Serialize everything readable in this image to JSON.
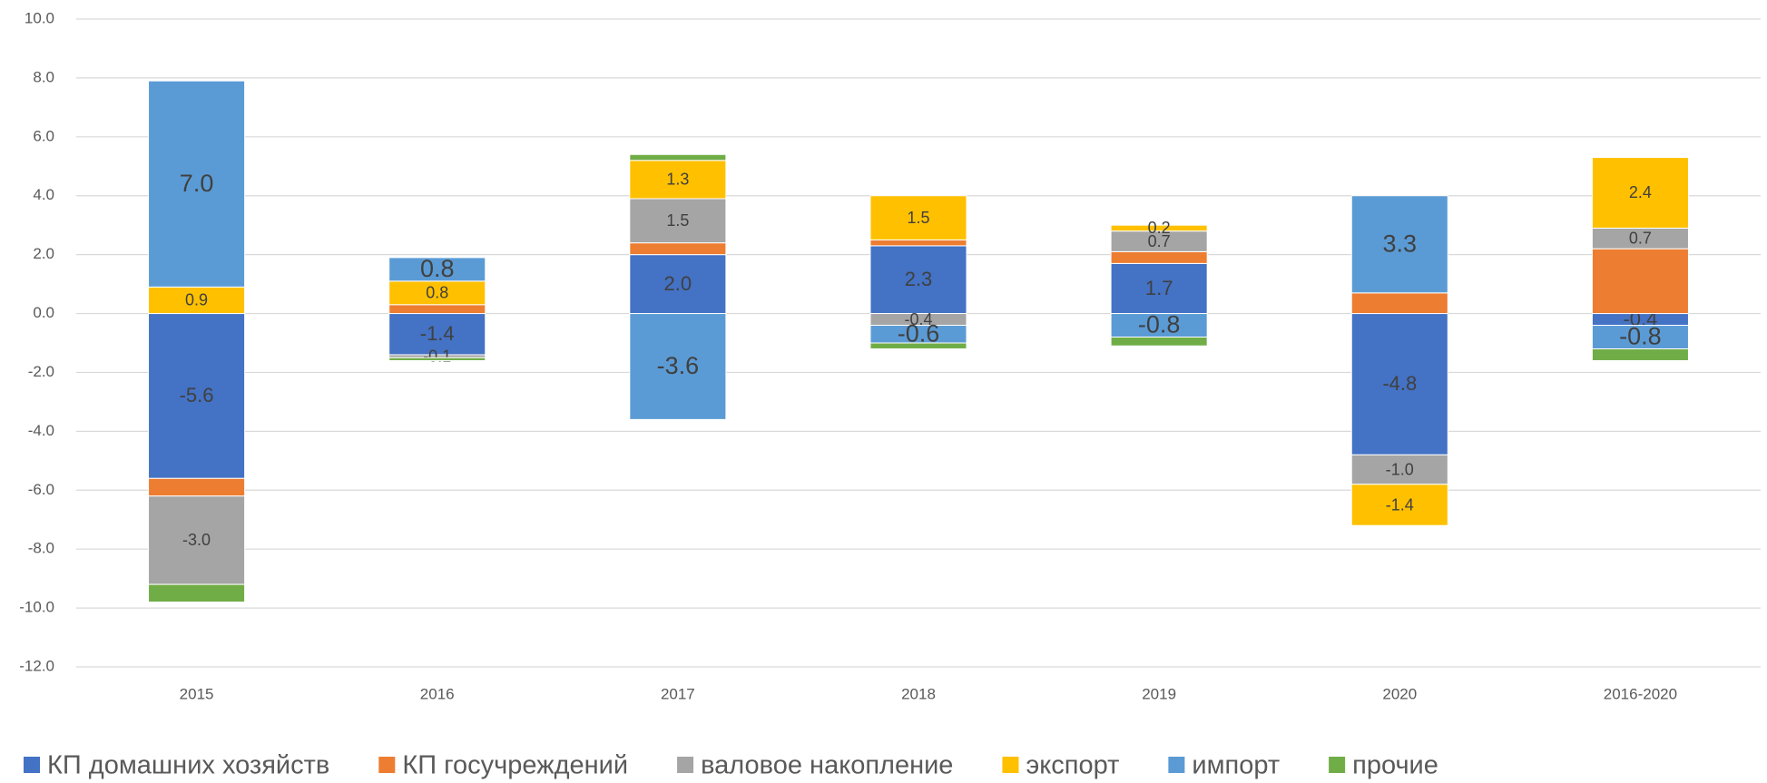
{
  "chart_data": {
    "type": "bar",
    "stacked": true,
    "categories": [
      "2015",
      "2016",
      "2017",
      "2018",
      "2019",
      "2020",
      "2016-2020"
    ],
    "series": [
      {
        "name": "КП домашних хозяйств",
        "color": "#4472c4",
        "values": [
          -5.6,
          -1.4,
          2.0,
          2.3,
          1.7,
          -4.8,
          -0.4
        ],
        "value_labels": [
          "-5.6",
          "-1.4",
          "2.0",
          "2.3",
          "1.7",
          "-4.8",
          "-0.4"
        ]
      },
      {
        "name": "КП госучреждений",
        "color": "#ed7d31",
        "values": [
          -0.6,
          0.3,
          0.4,
          0.2,
          0.4,
          0.7,
          2.2
        ],
        "value_labels": [
          null,
          null,
          null,
          null,
          null,
          null,
          null
        ]
      },
      {
        "name": "валовое накопление",
        "color": "#a5a5a5",
        "values": [
          -3.0,
          -0.1,
          1.5,
          -0.4,
          0.7,
          -1.0,
          0.7
        ],
        "value_labels": [
          "-3.0",
          "-0.1",
          "1.5",
          "-0.4",
          "0.7",
          "-1.0",
          "0.7"
        ]
      },
      {
        "name": "экспорт",
        "color": "#ffc000",
        "values": [
          0.9,
          0.8,
          1.3,
          1.5,
          0.2,
          -1.4,
          2.4
        ],
        "value_labels": [
          "0.9",
          "0.8",
          "1.3",
          "1.5",
          "0.2",
          "-1.4",
          "2.4"
        ]
      },
      {
        "name": "импорт",
        "color": "#5b9bd5",
        "values": [
          7.0,
          0.8,
          -3.6,
          -0.6,
          -0.8,
          3.3,
          -0.8
        ],
        "value_labels": [
          "7.0",
          "0.8",
          "-3.6",
          "-0.6",
          "-0.8",
          "3.3",
          "-0.8"
        ]
      },
      {
        "name": "прочие",
        "color": "#70ad47",
        "values": [
          -0.6,
          -0.1,
          0.2,
          -0.2,
          -0.3,
          null,
          -0.4
        ],
        "value_labels": [
          null,
          null,
          null,
          null,
          null,
          null,
          null
        ]
      }
    ],
    "ylim": [
      -12,
      10
    ],
    "yticks": [
      {
        "value": -12,
        "label": "-12.0"
      },
      {
        "value": -10,
        "label": "-10.0"
      },
      {
        "value": -8,
        "label": "-8.0"
      },
      {
        "value": -6,
        "label": "-6.0"
      },
      {
        "value": -4,
        "label": "-4.0"
      },
      {
        "value": -2,
        "label": "-2.0"
      },
      {
        "value": 0,
        "label": "0.0"
      },
      {
        "value": 2,
        "label": "2.0"
      },
      {
        "value": 4,
        "label": "4.0"
      },
      {
        "value": 6,
        "label": "6.0"
      },
      {
        "value": 8,
        "label": "8.0"
      },
      {
        "value": 10,
        "label": "10.0"
      }
    ],
    "grid": true,
    "legend": "bottom"
  }
}
